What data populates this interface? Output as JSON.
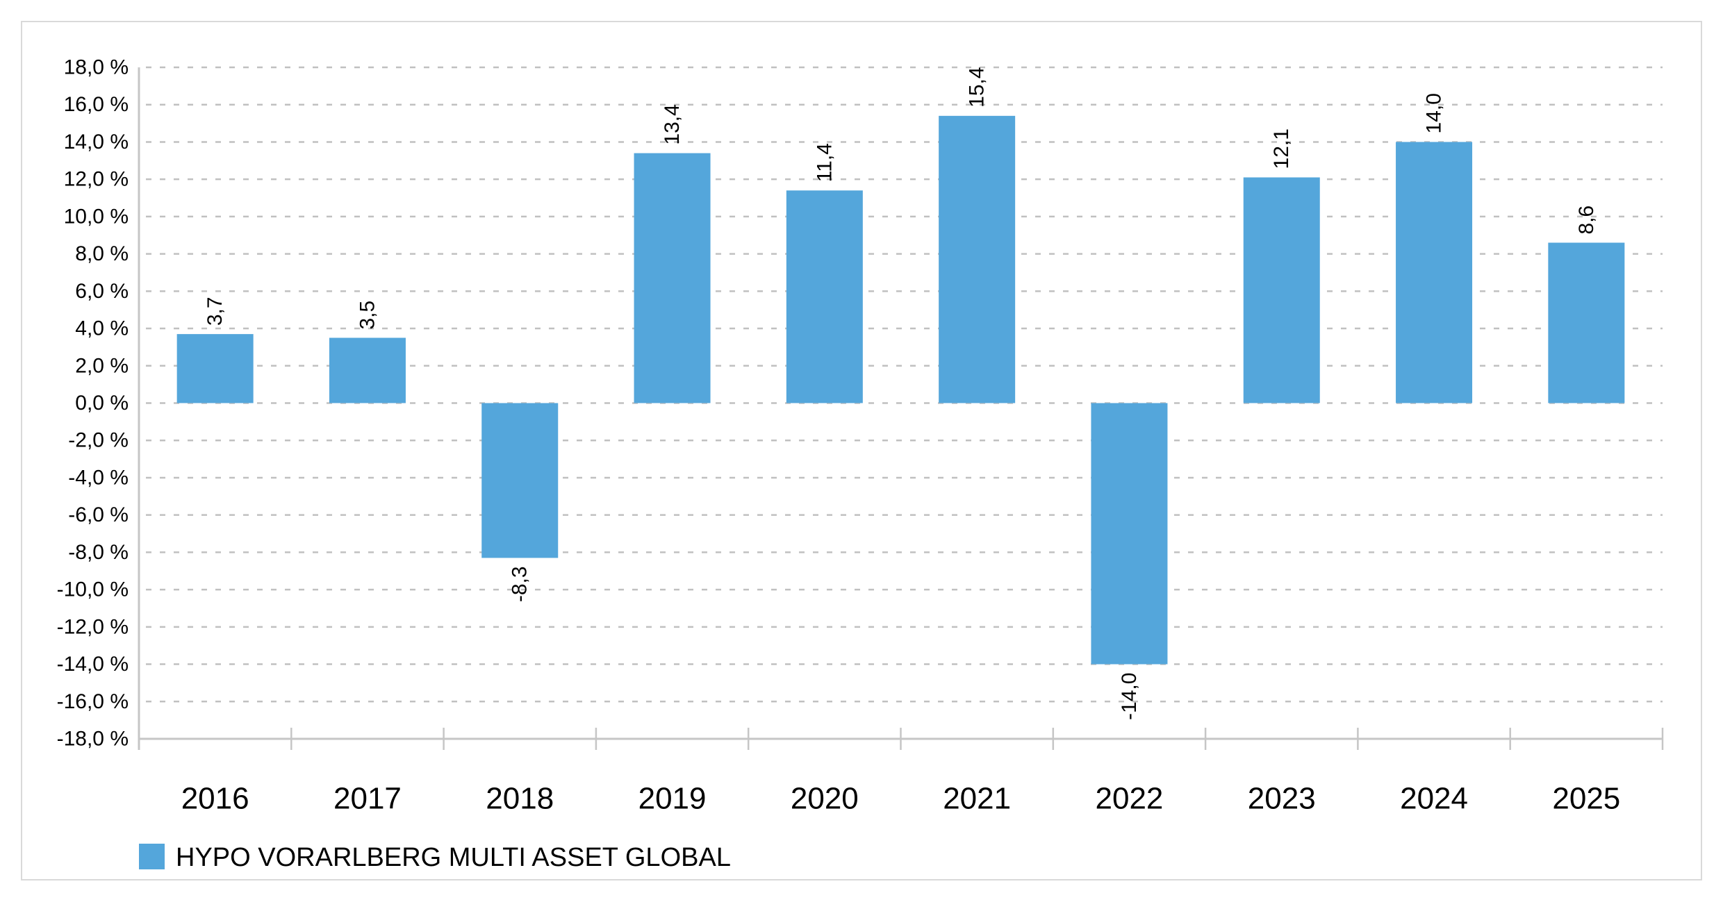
{
  "chart_data": {
    "type": "bar",
    "title": "",
    "xlabel": "",
    "ylabel": "",
    "categories": [
      "2016",
      "2017",
      "2018",
      "2019",
      "2020",
      "2021",
      "2022",
      "2023",
      "2024",
      "2025"
    ],
    "series": [
      {
        "name": "HYPO VORARLBERG MULTI ASSET GLOBAL",
        "values": [
          3.7,
          3.5,
          -8.3,
          13.4,
          11.4,
          15.4,
          -14.0,
          12.1,
          14.0,
          8.6
        ]
      }
    ],
    "value_labels": [
      "3,7",
      "3,5",
      "-8,3",
      "13,4",
      "11,4",
      "15,4",
      "-14,0",
      "12,1",
      "14,0",
      "8,6"
    ],
    "value_label_rotation_deg": -90,
    "ylim": [
      -18,
      18
    ],
    "ytick_step": 2,
    "ytick_labels": [
      "18,0 %",
      "16,0 %",
      "14,0 %",
      "12,0 %",
      "10,0 %",
      "8,0 %",
      "6,0 %",
      "4,0 %",
      "2,0 %",
      "0,0 %",
      "-2,0 %",
      "-4,0 %",
      "-6,0 %",
      "-8,0 %",
      "-10,0 %",
      "-12,0 %",
      "-14,0 %",
      "-16,0 %",
      "-18,0 %"
    ],
    "grid": "horizontal-dashed",
    "legend_position": "bottom-left",
    "colors": {
      "bar": "#54A6DB",
      "grid": "#C0C0C0",
      "axis": "#C6C6C6",
      "text": "#000000",
      "frame": "#D9D9D9",
      "background": "#FFFFFF"
    }
  },
  "legend": {
    "swatch_color": "#54A6DB",
    "label": "HYPO VORARLBERG MULTI ASSET GLOBAL"
  }
}
